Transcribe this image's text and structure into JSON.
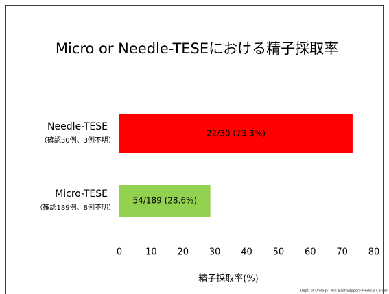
{
  "chart_data": {
    "type": "hbar",
    "title": "Micro or Needle-TESEにおける精子採取率",
    "categories": [
      "Needle-TESE",
      "Micro-TESE"
    ],
    "category_notes": [
      "（確認30例、3例不明）",
      "（確認189例、8例不明）"
    ],
    "values": [
      73.3,
      28.6
    ],
    "value_labels": [
      "22/30 (73.3%)",
      "54/189 (28.6%)"
    ],
    "colors": [
      "#ff0000",
      "#92d050"
    ],
    "xlabel": "精子採取率(%)",
    "xlim": [
      0,
      80
    ],
    "xticks": [
      0,
      10,
      20,
      30,
      40,
      50,
      60,
      70,
      80
    ],
    "grid": false,
    "footer": "Dept. of Urology, NTT-East Sapporo Medical Center"
  }
}
